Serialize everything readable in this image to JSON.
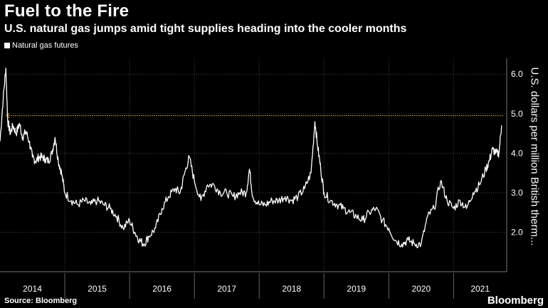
{
  "chart_data": {
    "type": "line",
    "title": "Fuel to the Fire",
    "subtitle": "U.S. natural gas jumps amid tight supplies heading into the cooler months",
    "legend": [
      "Natural gas futures"
    ],
    "ylabel": "U.S. dollars per million British therm...",
    "source": "Source: Bloomberg",
    "brand": "Bloomberg",
    "ylim": [
      1.0,
      6.4
    ],
    "yticks": [
      "2.0",
      "3.0",
      "4.0",
      "5.0",
      "6.0"
    ],
    "x_categories": [
      "2014",
      "2015",
      "2016",
      "2017",
      "2018",
      "2019",
      "2020",
      "2021"
    ],
    "reference_line": 4.95,
    "series": [
      {
        "name": "Natural gas futures",
        "x": [
          2014.0,
          2014.05,
          2014.09,
          2014.12,
          2014.16,
          2014.2,
          2014.25,
          2014.3,
          2014.35,
          2014.4,
          2014.45,
          2014.5,
          2014.55,
          2014.6,
          2014.65,
          2014.7,
          2014.75,
          2014.8,
          2014.85,
          2014.9,
          2014.95,
          2015.0,
          2015.1,
          2015.2,
          2015.3,
          2015.4,
          2015.5,
          2015.6,
          2015.7,
          2015.8,
          2015.9,
          2016.0,
          2016.08,
          2016.15,
          2016.22,
          2016.3,
          2016.4,
          2016.5,
          2016.6,
          2016.7,
          2016.78,
          2016.85,
          2016.92,
          2017.0,
          2017.1,
          2017.2,
          2017.3,
          2017.4,
          2017.5,
          2017.6,
          2017.7,
          2017.8,
          2017.85,
          2017.9,
          2018.0,
          2018.1,
          2018.2,
          2018.3,
          2018.4,
          2018.5,
          2018.6,
          2018.7,
          2018.8,
          2018.86,
          2018.9,
          2018.95,
          2019.0,
          2019.1,
          2019.2,
          2019.3,
          2019.4,
          2019.5,
          2019.6,
          2019.7,
          2019.8,
          2019.9,
          2020.0,
          2020.1,
          2020.2,
          2020.3,
          2020.4,
          2020.5,
          2020.6,
          2020.7,
          2020.8,
          2020.9,
          2021.0,
          2021.1,
          2021.2,
          2021.3,
          2021.4,
          2021.5,
          2021.55,
          2021.6,
          2021.65,
          2021.7,
          2021.74
        ],
        "values": [
          4.3,
          5.4,
          6.15,
          4.8,
          4.5,
          4.7,
          4.5,
          4.75,
          4.4,
          4.55,
          4.3,
          3.9,
          3.8,
          3.9,
          3.9,
          3.85,
          3.8,
          4.0,
          4.4,
          3.8,
          3.5,
          3.0,
          2.8,
          2.7,
          2.8,
          2.7,
          2.8,
          2.7,
          2.6,
          2.4,
          2.1,
          2.3,
          2.0,
          1.8,
          1.7,
          1.9,
          2.1,
          2.6,
          2.9,
          3.1,
          3.0,
          3.5,
          3.9,
          3.3,
          2.8,
          3.2,
          3.2,
          3.0,
          3.0,
          2.9,
          3.0,
          3.0,
          3.6,
          2.9,
          2.7,
          2.7,
          2.8,
          2.8,
          2.9,
          2.8,
          2.9,
          3.1,
          3.5,
          4.8,
          4.2,
          3.6,
          3.0,
          2.8,
          2.7,
          2.6,
          2.5,
          2.4,
          2.3,
          2.5,
          2.6,
          2.3,
          2.1,
          1.8,
          1.7,
          1.8,
          1.7,
          1.7,
          2.4,
          2.6,
          3.3,
          2.8,
          2.6,
          2.8,
          2.6,
          3.0,
          3.2,
          3.6,
          3.8,
          4.1,
          4.0,
          4.0,
          4.7
        ]
      }
    ]
  }
}
